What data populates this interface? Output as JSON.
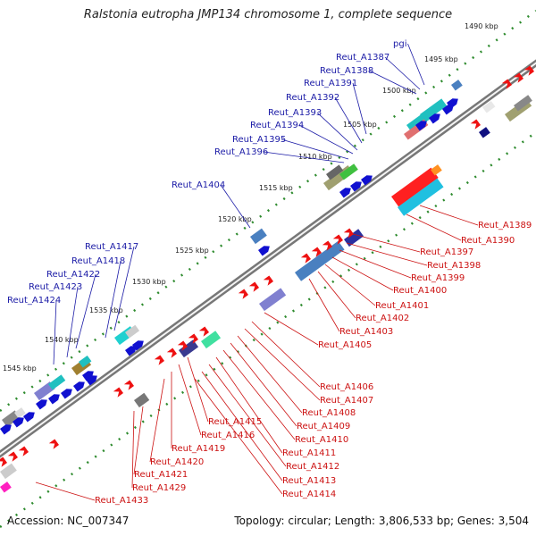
{
  "title": "Ralstonia eutropha JMP134 chromosome 1, complete sequence",
  "footer": {
    "accession": "Accession: NC_007347",
    "topology": "Topology: circular; Length: 3,806,533 bp; Genes: 3,504"
  },
  "colors": {
    "backbone": "#666666",
    "tick": "#2e8b2e",
    "forward_label": "#1a1aa6",
    "reverse_label": "#cc1111"
  },
  "kbp_labels": [
    "1490 kbp",
    "1495 kbp",
    "1500 kbp",
    "1505 kbp",
    "1510 kbp",
    "1515 kbp",
    "1520 kbp",
    "1525 kbp",
    "1530 kbp",
    "1535 kbp",
    "1540 kbp",
    "1545 kbp"
  ],
  "forward_genes": [
    "pgi",
    "Reut_A1387",
    "Reut_A1388",
    "Reut_A1391",
    "Reut_A1392",
    "Reut_A1393",
    "Reut_A1394",
    "Reut_A1395",
    "Reut_A1396",
    "Reut_A1404",
    "Reut_A1417",
    "Reut_A1418",
    "Reut_A1422",
    "Reut_A1423",
    "Reut_A1424"
  ],
  "reverse_genes": [
    "Reut_A1389",
    "Reut_A1390",
    "Reut_A1397",
    "Reut_A1398",
    "Reut_A1399",
    "Reut_A1400",
    "Reut_A1401",
    "Reut_A1402",
    "Reut_A1403",
    "Reut_A1405",
    "Reut_A1406",
    "Reut_A1407",
    "Reut_A1408",
    "Reut_A1409",
    "Reut_A1410",
    "Reut_A1411",
    "Reut_A1412",
    "Reut_A1413",
    "Reut_A1414",
    "Reut_A1415",
    "Reut_A1416",
    "Reut_A1419",
    "Reut_A1420",
    "Reut_A1421",
    "Reut_A1429",
    "Reut_A1433"
  ]
}
